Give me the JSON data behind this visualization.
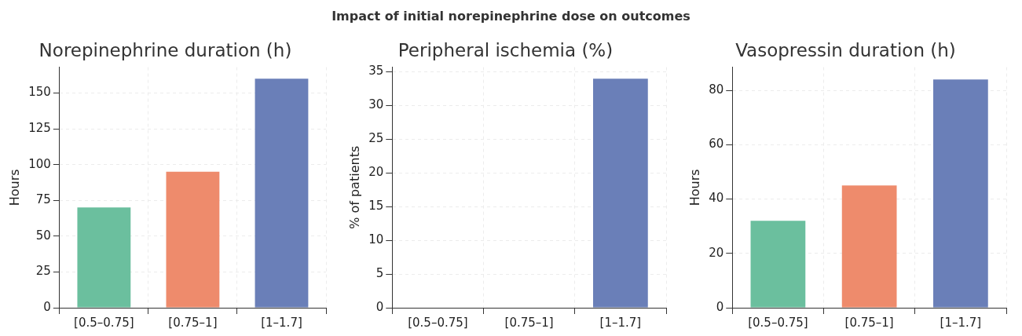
{
  "chart_data": [
    {
      "type": "bar",
      "annotations": [
        "Impact of initial norepinephrine dose on outcomes"
      ],
      "title": "Norepinephrine duration (h)",
      "ylabel": "Hours",
      "categories": [
        "[0.5–0.75]",
        "[0.75–1]",
        "[1–1.7]"
      ],
      "values": [
        70,
        95,
        160
      ],
      "colors": [
        "#6bbf9e",
        "#ee8b6c",
        "#6a7fb8"
      ],
      "ylim": [
        0,
        168
      ],
      "yticks": [
        0,
        25,
        50,
        75,
        100,
        125,
        150
      ],
      "grid": true,
      "legend": false
    },
    {
      "type": "bar",
      "title": "Peripheral ischemia (%)",
      "ylabel": "% of patients",
      "categories": [
        "[0.5–0.75]",
        "[0.75–1]",
        "[1–1.7]"
      ],
      "values": [
        0,
        0,
        34
      ],
      "colors": [
        "#6bbf9e",
        "#ee8b6c",
        "#6a7fb8"
      ],
      "ylim": [
        0,
        35.7
      ],
      "yticks": [
        0,
        5,
        10,
        15,
        20,
        25,
        30,
        35
      ],
      "grid": true,
      "legend": false
    },
    {
      "type": "bar",
      "title": "Vasopressin duration (h)",
      "ylabel": "Hours",
      "categories": [
        "[0.5–0.75]",
        "[0.75–1]",
        "[1–1.7]"
      ],
      "values": [
        32,
        45,
        84
      ],
      "colors": [
        "#6bbf9e",
        "#ee8b6c",
        "#6a7fb8"
      ],
      "ylim": [
        0,
        88.5
      ],
      "yticks": [
        0,
        20,
        40,
        60,
        80
      ],
      "grid": true,
      "legend": false
    }
  ]
}
